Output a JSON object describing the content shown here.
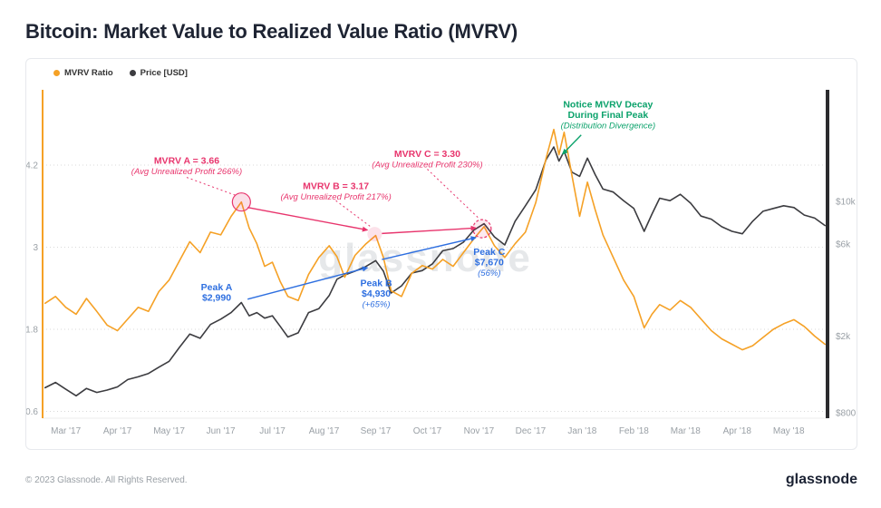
{
  "page": {
    "title": "Bitcoin: Market Value to Realized Value Ratio (MVRV)",
    "watermark": "glassnode",
    "footer": {
      "copyright": "© 2023 Glassnode. All Rights Reserved.",
      "brand": "glassnode"
    }
  },
  "legend": {
    "items": [
      {
        "label": "MVRV Ratio",
        "color": "#f5a126"
      },
      {
        "label": "Price [USD]",
        "color": "#3c3c40"
      }
    ]
  },
  "chart_data": {
    "type": "line",
    "title": "Bitcoin: Market Value to Realized Value Ratio (MVRV)",
    "x_unit": "months since Mar 2017 (0 = Mar '17 tick, 1 unit = 1 month)",
    "x_range": [
      -0.45,
      14.75
    ],
    "x_tick_positions": [
      0,
      1,
      2,
      3,
      4,
      5,
      6,
      7,
      8,
      9,
      10,
      11,
      12,
      13,
      14
    ],
    "x_tick_labels": [
      "Mar '17",
      "Apr '17",
      "May '17",
      "Jun '17",
      "Jul '17",
      "Aug '17",
      "Sep '17",
      "Oct '17",
      "Nov '17",
      "Dec '17",
      "Jan '18",
      "Feb '18",
      "Mar '18",
      "Apr '18",
      "May '18"
    ],
    "left_axis": {
      "title": "MVRV Ratio",
      "scale": "linear",
      "range": [
        0.5,
        5.3
      ],
      "ticks": [
        0.6,
        1.8,
        3,
        4.2
      ],
      "tick_labels": [
        "0.6",
        "1.8",
        "3",
        "4.2"
      ],
      "color": "#f5a126"
    },
    "right_axis": {
      "title": "Price [USD]",
      "scale": "log",
      "range": [
        750,
        38000
      ],
      "ticks": [
        800,
        2000,
        6000,
        10000
      ],
      "tick_labels": [
        "$800",
        "$2k",
        "$6k",
        "$10k"
      ],
      "color": "#2b2b2e"
    },
    "x": [
      -0.4,
      -0.2,
      0,
      0.2,
      0.4,
      0.6,
      0.8,
      1,
      1.2,
      1.4,
      1.6,
      1.8,
      2,
      2.2,
      2.4,
      2.6,
      2.8,
      3,
      3.2,
      3.4,
      3.55,
      3.7,
      3.85,
      4,
      4.15,
      4.3,
      4.5,
      4.7,
      4.9,
      5.1,
      5.25,
      5.4,
      5.6,
      5.8,
      6,
      6.15,
      6.3,
      6.5,
      6.7,
      6.9,
      7.1,
      7.3,
      7.5,
      7.7,
      7.9,
      8.1,
      8.3,
      8.5,
      8.7,
      8.9,
      9.1,
      9.3,
      9.45,
      9.55,
      9.65,
      9.8,
      9.95,
      10.1,
      10.25,
      10.4,
      10.6,
      10.8,
      11,
      11.2,
      11.35,
      11.5,
      11.7,
      11.9,
      12.1,
      12.3,
      12.5,
      12.7,
      12.9,
      13.1,
      13.3,
      13.5,
      13.7,
      13.9,
      14.1,
      14.3,
      14.5,
      14.7
    ],
    "series": [
      {
        "id": "mvrv-ratio",
        "name": "MVRV Ratio",
        "axis": "left",
        "color": "#f5a126",
        "values": [
          2.18,
          2.28,
          2.12,
          2.02,
          2.25,
          2.06,
          1.86,
          1.78,
          1.95,
          2.12,
          2.06,
          2.35,
          2.52,
          2.8,
          3.08,
          2.92,
          3.22,
          3.18,
          3.45,
          3.66,
          3.28,
          3.05,
          2.72,
          2.78,
          2.5,
          2.28,
          2.22,
          2.6,
          2.85,
          3.02,
          2.86,
          2.56,
          2.88,
          3.04,
          3.17,
          2.85,
          2.36,
          2.28,
          2.62,
          2.73,
          2.68,
          2.82,
          2.72,
          2.92,
          3.12,
          3.3,
          3.02,
          2.85,
          3.05,
          3.22,
          3.65,
          4.3,
          4.72,
          4.35,
          4.68,
          4.05,
          3.45,
          3.95,
          3.55,
          3.18,
          2.85,
          2.52,
          2.28,
          1.82,
          2.02,
          2.16,
          2.08,
          2.22,
          2.12,
          1.95,
          1.78,
          1.66,
          1.58,
          1.5,
          1.56,
          1.68,
          1.8,
          1.88,
          1.94,
          1.84,
          1.7,
          1.58
        ]
      },
      {
        "id": "price-usd",
        "name": "Price [USD]",
        "axis": "right",
        "color": "#3c3c40",
        "values": [
          1080,
          1150,
          1060,
          980,
          1070,
          1020,
          1050,
          1090,
          1190,
          1230,
          1280,
          1380,
          1480,
          1750,
          2050,
          1950,
          2300,
          2450,
          2650,
          2990,
          2550,
          2650,
          2480,
          2550,
          2250,
          1980,
          2080,
          2650,
          2780,
          3250,
          3950,
          4150,
          4350,
          4580,
          4930,
          4350,
          3350,
          3650,
          4250,
          4380,
          4750,
          5550,
          5700,
          6150,
          7100,
          7670,
          6550,
          5950,
          7900,
          9500,
          11500,
          16500,
          19200,
          16200,
          18200,
          14200,
          13500,
          16800,
          13800,
          11600,
          11200,
          10100,
          9200,
          7000,
          8600,
          10400,
          10100,
          10900,
          9800,
          8400,
          8100,
          7400,
          7000,
          6800,
          7900,
          8900,
          9200,
          9500,
          9300,
          8500,
          8200,
          7500
        ]
      }
    ],
    "palette": {
      "pink": "#e8356d",
      "blue": "#2e6fe0",
      "green": "#0ba26b"
    },
    "annotations": [
      {
        "id": "mvrv-a",
        "color": "pink",
        "x": 2.34,
        "y": 4.22,
        "lines": [
          {
            "text": "MVRV A = 3.66"
          },
          {
            "text": "(Avg Unrealized Profit 266%)",
            "italic": true
          }
        ]
      },
      {
        "id": "mvrv-b",
        "color": "pink",
        "x": 5.23,
        "y": 3.85,
        "lines": [
          {
            "text": "MVRV B = 3.17"
          },
          {
            "text": "(Avg Unrealized Profit 217%)",
            "italic": true
          }
        ]
      },
      {
        "id": "mvrv-c",
        "color": "pink",
        "x": 7.0,
        "y": 4.32,
        "lines": [
          {
            "text": "MVRV C = 3.30"
          },
          {
            "text": "(Avg Unrealized Profit 230%)",
            "italic": true
          }
        ]
      },
      {
        "id": "mvrv-decay",
        "color": "green",
        "x": 10.5,
        "y": 5.04,
        "lines": [
          {
            "text": "Notice MVRV Decay"
          },
          {
            "text": "During Final Peak"
          },
          {
            "text": "(Distribution Divergence)",
            "italic": true
          }
        ]
      },
      {
        "id": "peak-a",
        "color": "blue",
        "x": 2.92,
        "y": 2.37,
        "lines": [
          {
            "text": "Peak A"
          },
          {
            "text": "$2,990"
          }
        ]
      },
      {
        "id": "peak-b",
        "color": "blue",
        "x": 6.01,
        "y": 2.43,
        "lines": [
          {
            "text": "Peak B"
          },
          {
            "text": "$4,930"
          },
          {
            "text": "(+65%)",
            "italic": true
          }
        ]
      },
      {
        "id": "peak-c",
        "color": "blue",
        "x": 8.2,
        "y": 2.89,
        "lines": [
          {
            "text": "Peak C"
          },
          {
            "text": "$7,670"
          },
          {
            "text": "(56%)",
            "italic": true
          }
        ]
      }
    ],
    "highlight_circles": [
      {
        "x": 3.4,
        "y": 3.66,
        "r": 10,
        "fill": "rgba(232,53,109,0.16)",
        "stroke": "#e8356d",
        "dashed": false
      },
      {
        "x": 5.98,
        "y": 3.19,
        "r": 8,
        "fill": "rgba(232,53,109,0.14)"
      },
      {
        "x": 8.06,
        "y": 3.27,
        "r": 10,
        "fill": "rgba(232,53,109,0.10)",
        "stroke": "#e8356d",
        "dashed": true
      }
    ],
    "connectors": [
      {
        "id": "mvrv-a-to-b-arrow",
        "color": "pink",
        "from": [
          3.52,
          3.58
        ],
        "to": [
          5.84,
          3.25
        ],
        "arrow": true
      },
      {
        "id": "mvrv-b-to-c-arrow",
        "color": "pink",
        "from": [
          6.12,
          3.2
        ],
        "to": [
          7.94,
          3.28
        ],
        "arrow": true
      },
      {
        "id": "peak-a-to-b-arrow",
        "color": "blue",
        "from": [
          3.52,
          2.24
        ],
        "to": [
          5.84,
          2.7
        ],
        "arrow": true
      },
      {
        "id": "peak-b-to-c-arrow",
        "color": "blue",
        "from": [
          6.12,
          2.82
        ],
        "to": [
          7.94,
          3.14
        ],
        "arrow": true
      },
      {
        "id": "decay-arrow",
        "color": "green",
        "from": [
          9.98,
          4.64
        ],
        "to": [
          9.62,
          4.36
        ],
        "arrow": true
      },
      {
        "id": "mvrv-a-label-connector",
        "color": "pink",
        "from": [
          2.34,
          4.02
        ],
        "to": [
          3.28,
          3.76
        ],
        "dashed": true
      },
      {
        "id": "mvrv-b-label-connector",
        "color": "pink",
        "from": [
          5.23,
          3.68
        ],
        "to": [
          5.9,
          3.3
        ],
        "dashed": true
      },
      {
        "id": "mvrv-c-label-connector",
        "color": "pink",
        "from": [
          7.0,
          4.14
        ],
        "to": [
          8.0,
          3.42
        ],
        "dashed": true
      }
    ]
  }
}
